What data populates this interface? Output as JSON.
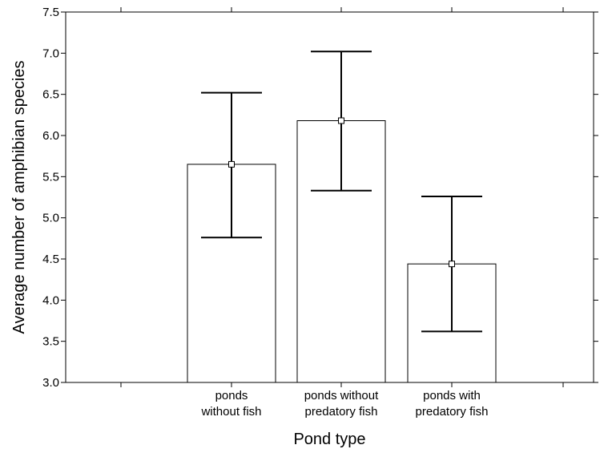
{
  "chart_data": {
    "type": "bar",
    "title": "",
    "xlabel": "Pond type",
    "ylabel": "Average number of amphibian species",
    "ylim": [
      3.0,
      7.5
    ],
    "yticks": [
      "3.0",
      "3.5",
      "4.0",
      "4.5",
      "5.0",
      "5.5",
      "6.0",
      "6.5",
      "7.0",
      "7.5"
    ],
    "categories": [
      [
        "ponds",
        "without fish"
      ],
      [
        "ponds without",
        "predatory fish"
      ],
      [
        "ponds with",
        "predatory fish"
      ]
    ],
    "values": [
      5.65,
      6.18,
      4.44
    ],
    "error_low": [
      4.76,
      5.33,
      3.62
    ],
    "error_high": [
      6.52,
      7.02,
      5.26
    ],
    "grid": false,
    "legend": "none",
    "colors": {
      "bar_fill": "#ffffff",
      "bar_stroke": "#000000",
      "marker_fill": "#ffffff"
    }
  }
}
